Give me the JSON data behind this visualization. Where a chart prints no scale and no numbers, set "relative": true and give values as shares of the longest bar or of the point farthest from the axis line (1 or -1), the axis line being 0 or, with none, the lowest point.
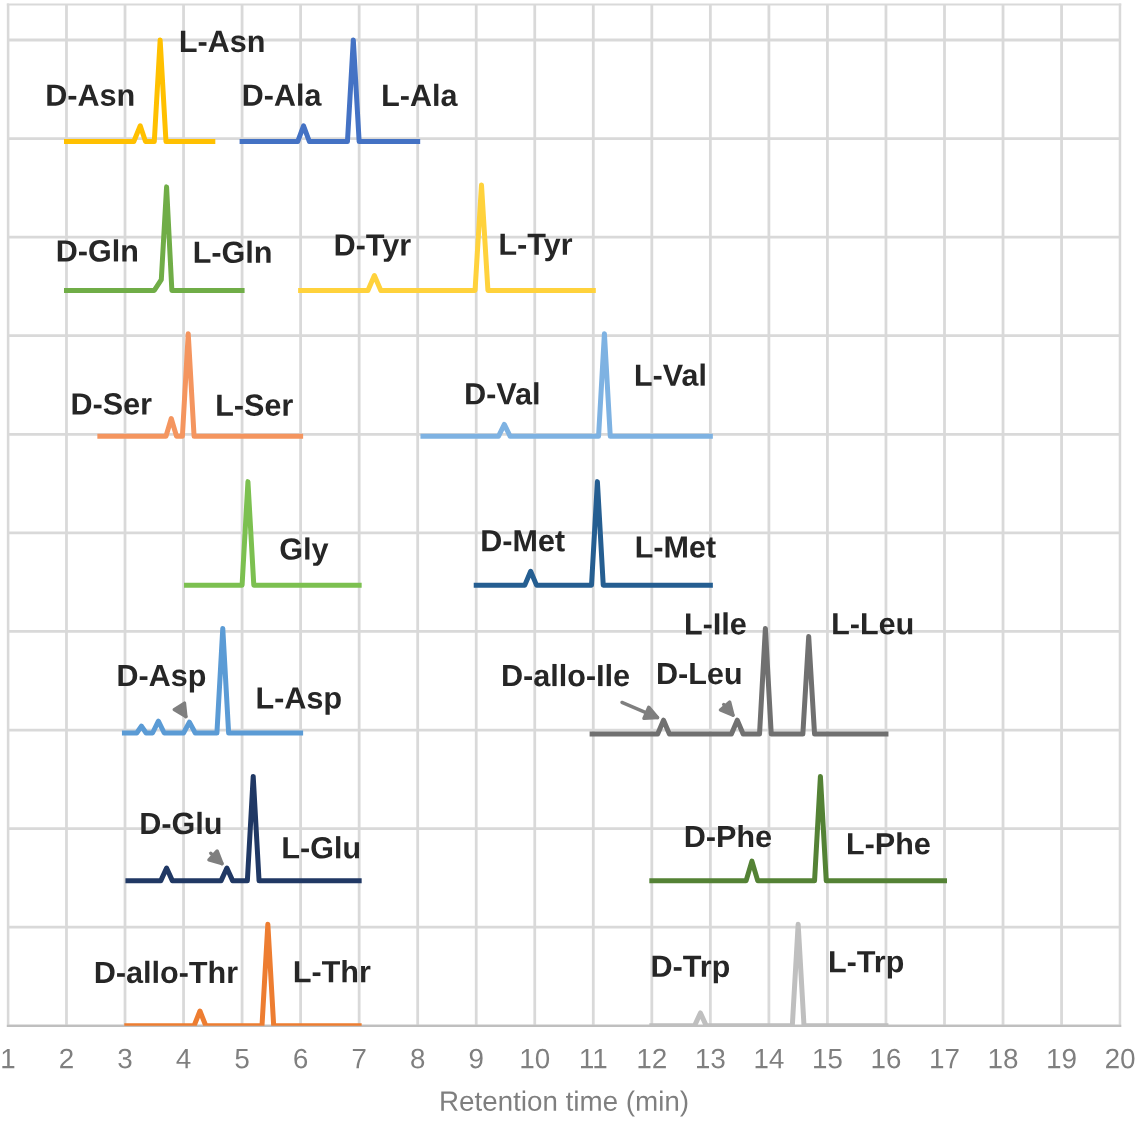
{
  "chart_data": {
    "type": "line",
    "relative": true,
    "xlabel": "Retention time (min)",
    "xlim": [
      1,
      20
    ],
    "xticks": [
      1,
      2,
      3,
      4,
      5,
      6,
      7,
      8,
      9,
      10,
      11,
      12,
      13,
      14,
      15,
      16,
      17,
      18,
      19,
      20
    ],
    "grid": true,
    "tick_labels": "x",
    "marker": "none",
    "line_style": "solid",
    "series": [
      {
        "color": "#ffc000",
        "x": [
          2,
          3.15,
          3.26,
          3.35,
          3.5,
          3.6,
          3.7,
          4.5
        ],
        "values": [
          0.897,
          0.897,
          0.913,
          0.897,
          0.897,
          1.0,
          0.897,
          0.897
        ]
      },
      {
        "color": "#4472c4",
        "x": [
          5,
          5.95,
          6.05,
          6.15,
          6.8,
          6.9,
          7.0,
          8
        ],
        "values": [
          0.897,
          0.897,
          0.913,
          0.897,
          0.897,
          1.0,
          0.897,
          0.897
        ]
      },
      {
        "color": "#70ad47",
        "x": [
          2,
          3.5,
          3.62,
          3.71,
          3.8,
          5
        ],
        "values": [
          0.746,
          0.746,
          0.757,
          0.851,
          0.746,
          0.746
        ]
      },
      {
        "color": "#ffd23c",
        "x": [
          6,
          7.15,
          7.26,
          7.37,
          8.98,
          9.09,
          9.2,
          11
        ],
        "values": [
          0.746,
          0.746,
          0.761,
          0.746,
          0.746,
          0.853,
          0.746,
          0.746
        ]
      },
      {
        "color": "#f4955f",
        "x": [
          2.57,
          3.7,
          3.79,
          3.88,
          3.98,
          4.08,
          4.18,
          6
        ],
        "values": [
          0.598,
          0.598,
          0.616,
          0.598,
          0.598,
          0.702,
          0.598,
          0.598
        ]
      },
      {
        "color": "#7eb2e2",
        "x": [
          8.09,
          9.38,
          9.48,
          9.58,
          11.09,
          11.19,
          11.29,
          13
        ],
        "values": [
          0.598,
          0.598,
          0.61,
          0.598,
          0.598,
          0.702,
          0.598,
          0.598
        ]
      },
      {
        "color": "#7cc050",
        "x": [
          4.05,
          5.0,
          5.1,
          5.2,
          7
        ],
        "values": [
          0.447,
          0.447,
          0.552,
          0.447,
          0.447
        ]
      },
      {
        "color": "#255e91",
        "x": [
          9,
          9.83,
          9.93,
          10.03,
          10.97,
          11.07,
          11.17,
          13
        ],
        "values": [
          0.447,
          0.447,
          0.461,
          0.447,
          0.447,
          0.552,
          0.447,
          0.447
        ]
      },
      {
        "color": "#5b9bd5",
        "x": [
          2.99,
          3.2,
          3.28,
          3.36,
          3.47,
          3.57,
          3.67,
          4.0,
          4.1,
          4.2,
          4.57,
          4.67,
          4.77,
          6
        ],
        "values": [
          0.297,
          0.297,
          0.304,
          0.297,
          0.297,
          0.309,
          0.297,
          0.297,
          0.308,
          0.297,
          0.297,
          0.403,
          0.297,
          0.297
        ]
      },
      {
        "color": "#203864",
        "x": [
          3.05,
          3.61,
          3.71,
          3.81,
          4.64,
          4.74,
          4.84,
          5.09,
          5.19,
          5.29,
          7
        ],
        "values": [
          0.147,
          0.147,
          0.16,
          0.147,
          0.147,
          0.16,
          0.147,
          0.147,
          0.253,
          0.147,
          0.147
        ]
      },
      {
        "color": "#ed7d31",
        "x": [
          3.03,
          4.18,
          4.28,
          4.38,
          5.34,
          5.44,
          5.54,
          7
        ],
        "values": [
          0.0,
          0.0,
          0.015,
          0.0,
          0.0,
          0.103,
          0.0,
          0.0
        ]
      },
      {
        "color": "#707070",
        "x": [
          10.98,
          12.1,
          12.2,
          12.3,
          13.36,
          13.46,
          13.56,
          13.84,
          13.94,
          14.04,
          14.58,
          14.68,
          14.78,
          16
        ],
        "values": [
          0.296,
          0.296,
          0.31,
          0.296,
          0.296,
          0.31,
          0.296,
          0.296,
          0.403,
          0.296,
          0.296,
          0.395,
          0.296,
          0.296
        ]
      },
      {
        "color": "#548235",
        "x": [
          12,
          13.61,
          13.71,
          13.81,
          14.78,
          14.88,
          14.98,
          17
        ],
        "values": [
          0.147,
          0.147,
          0.167,
          0.147,
          0.147,
          0.253,
          0.147,
          0.147
        ]
      },
      {
        "color": "#bfbfbf",
        "x": [
          12,
          12.73,
          12.83,
          12.93,
          14.4,
          14.5,
          14.6,
          16
        ],
        "values": [
          0.0,
          0.0,
          0.013,
          0.0,
          0.0,
          0.103,
          0.0,
          0.0
        ]
      }
    ],
    "annotations": [
      {
        "text": "D-Asn",
        "x": 3.26,
        "y": 0.913
      },
      {
        "text": "L-Asn",
        "x": 3.6,
        "y": 1.0
      },
      {
        "text": "D-Ala",
        "x": 6.05,
        "y": 0.913
      },
      {
        "text": "L-Ala",
        "x": 6.9,
        "y": 1.0
      },
      {
        "text": "D-Gln",
        "x": 3.62,
        "y": 0.757
      },
      {
        "text": "L-Gln",
        "x": 3.71,
        "y": 0.851
      },
      {
        "text": "D-Tyr",
        "x": 7.26,
        "y": 0.761
      },
      {
        "text": "L-Tyr",
        "x": 9.09,
        "y": 0.853
      },
      {
        "text": "D-Ser",
        "x": 3.79,
        "y": 0.616
      },
      {
        "text": "L-Ser",
        "x": 4.08,
        "y": 0.702
      },
      {
        "text": "D-Val",
        "x": 9.48,
        "y": 0.61
      },
      {
        "text": "L-Val",
        "x": 11.19,
        "y": 0.702
      },
      {
        "text": "Gly",
        "x": 5.1,
        "y": 0.552
      },
      {
        "text": "D-Met",
        "x": 9.93,
        "y": 0.461
      },
      {
        "text": "L-Met",
        "x": 11.07,
        "y": 0.552
      },
      {
        "text": "D-Asp",
        "x": 4.1,
        "y": 0.308
      },
      {
        "text": "L-Asp",
        "x": 4.67,
        "y": 0.403
      },
      {
        "text": "D-Glu",
        "x": 4.74,
        "y": 0.16
      },
      {
        "text": "L-Glu",
        "x": 5.19,
        "y": 0.253
      },
      {
        "text": "D-allo-Thr",
        "x": 4.28,
        "y": 0.015
      },
      {
        "text": "L-Thr",
        "x": 5.44,
        "y": 0.103
      },
      {
        "text": "D-allo-Ile",
        "x": 12.2,
        "y": 0.31
      },
      {
        "text": "D-Leu",
        "x": 13.46,
        "y": 0.31
      },
      {
        "text": "L-Ile",
        "x": 13.94,
        "y": 0.403
      },
      {
        "text": "L-Leu",
        "x": 14.68,
        "y": 0.395
      },
      {
        "text": "D-Phe",
        "x": 13.71,
        "y": 0.167
      },
      {
        "text": "L-Phe",
        "x": 14.88,
        "y": 0.253
      },
      {
        "text": "D-Trp",
        "x": 12.83,
        "y": 0.013
      },
      {
        "text": "L-Trp",
        "x": 14.5,
        "y": 0.103
      }
    ]
  }
}
